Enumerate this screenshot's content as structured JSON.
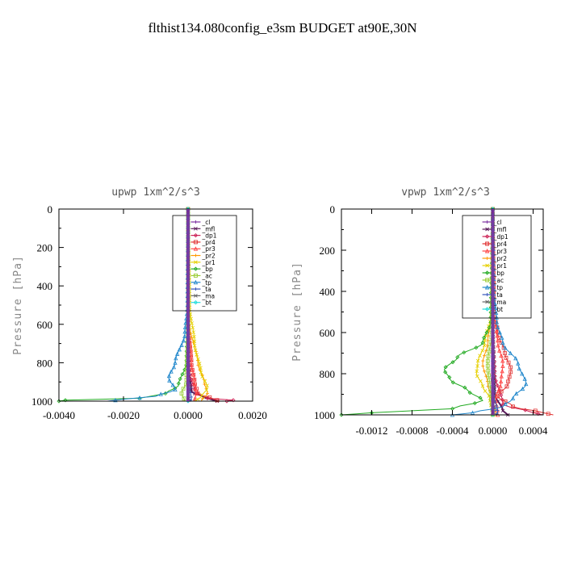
{
  "title": "flthist134.080config_e3sm  BUDGET at90E,30N",
  "chart_data": [
    {
      "type": "line",
      "title": "upwp   1xm^2/s^3",
      "ylabel": "Pressure [hPa]",
      "xlim": [
        -0.004,
        0.002
      ],
      "ylim": [
        1000,
        0
      ],
      "xticks": [
        "-0.0040",
        "-0.0020",
        "0.0000",
        "0.0020"
      ],
      "xtick_values": [
        -0.004,
        -0.002,
        0.0,
        0.002
      ],
      "yticks": [
        "0",
        "200",
        "400",
        "600",
        "800",
        "1000"
      ],
      "ytick_values": [
        0,
        200,
        400,
        600,
        800,
        1000
      ],
      "legend": [
        "_cl",
        "_mfl",
        "_dp1",
        "_pr4",
        "_pr3",
        "_pr2",
        "_pr1",
        "_bp",
        "_ac",
        "_tp",
        "_ta",
        "_ma",
        "_bt"
      ],
      "series": [
        {
          "name": "_cl",
          "color": "#7b2fa0",
          "pressure": [
            0,
            200,
            400,
            600,
            800,
            900,
            960,
            1000
          ],
          "values": [
            0,
            0,
            0,
            0,
            0,
            0,
            0,
            0
          ]
        },
        {
          "name": "_mfl",
          "color": "#5a1a5a",
          "pressure": [
            0,
            400,
            800,
            950,
            980,
            1000
          ],
          "values": [
            0,
            0,
            0,
            0.0001,
            0.0005,
            0.0009
          ]
        },
        {
          "name": "_dp1",
          "color": "#cc2255",
          "pressure": [
            0,
            600,
            850,
            950,
            985,
            995,
            1000
          ],
          "values": [
            0,
            0,
            5e-05,
            0.0002,
            0.0006,
            0.0014,
            0.0012
          ]
        },
        {
          "name": "_pr4",
          "color": "#e03030",
          "pressure": [
            0,
            600,
            800,
            900,
            960,
            990,
            1000
          ],
          "values": [
            0,
            0,
            0.0001,
            0.0002,
            0.0003,
            0.0008,
            0.001
          ]
        },
        {
          "name": "_pr3",
          "color": "#ff4444",
          "pressure": [
            0,
            600,
            800,
            900,
            960,
            1000
          ],
          "values": [
            0,
            2e-05,
            0.0001,
            0.0002,
            0.00025,
            0.0002
          ]
        },
        {
          "name": "_pr2",
          "color": "#ff9900",
          "pressure": [
            0,
            600,
            800,
            900,
            960,
            1000
          ],
          "values": [
            0,
            5e-05,
            0.0003,
            0.0005,
            0.0006,
            0.0004
          ]
        },
        {
          "name": "_pr1",
          "color": "#e6d000",
          "pressure": [
            0,
            500,
            700,
            850,
            930,
            980,
            1000
          ],
          "values": [
            0,
            5e-05,
            0.0002,
            0.0004,
            0.0006,
            0.0004,
            0.0002
          ]
        },
        {
          "name": "_bp",
          "color": "#22aa22",
          "pressure": [
            0,
            500,
            800,
            920,
            960,
            985,
            995,
            1000
          ],
          "values": [
            0,
            0,
            -5e-05,
            -0.0003,
            -0.0007,
            -0.0015,
            -0.0038,
            -0.004
          ]
        },
        {
          "name": "_ac",
          "color": "#99cc33",
          "pressure": [
            0,
            600,
            900,
            960,
            1000
          ],
          "values": [
            0,
            0,
            -5e-05,
            -0.0002,
            -0.0001
          ]
        },
        {
          "name": "_tp",
          "color": "#2288cc",
          "pressure": [
            0,
            500,
            650,
            800,
            880,
            940,
            975,
            990,
            1000
          ],
          "values": [
            0,
            -2e-05,
            -0.0001,
            -0.0004,
            -0.0006,
            -0.0004,
            -0.001,
            -0.002,
            -0.0025
          ]
        },
        {
          "name": "_ta",
          "color": "#3355bb",
          "pressure": [
            0,
            600,
            900,
            990,
            1000
          ],
          "values": [
            0,
            0,
            3e-05,
            0.0001,
            5e-05
          ]
        },
        {
          "name": "_ma",
          "color": "#666666",
          "pressure": [
            0,
            500,
            900,
            1000
          ],
          "values": [
            0,
            0,
            1e-05,
            2e-05
          ]
        },
        {
          "name": "_bt",
          "color": "#22dddd",
          "pressure": [
            0,
            500,
            1000
          ],
          "values": [
            0,
            0,
            0
          ]
        }
      ]
    },
    {
      "type": "line",
      "title": "vpwp   1xm^2/s^3",
      "ylabel": "Pressure [hPa]",
      "xlim": [
        -0.0015,
        0.0005
      ],
      "ylim": [
        1000,
        0
      ],
      "xticks": [
        "-0.0012",
        "-0.0008",
        "-0.0004",
        "0.0000",
        "0.0004"
      ],
      "xtick_values": [
        -0.0012,
        -0.0008,
        -0.0004,
        0.0,
        0.0004
      ],
      "yticks": [
        "0",
        "200",
        "400",
        "600",
        "800",
        "1000"
      ],
      "ytick_values": [
        0,
        200,
        400,
        600,
        800,
        1000
      ],
      "legend": [
        "_cl",
        "_mfl",
        "_dp1",
        "_pr4",
        "_pr3",
        "_pr2",
        "_pr1",
        "_bp",
        "_ac",
        "_tp",
        "_ta",
        "_ma",
        "_bt"
      ],
      "series": [
        {
          "name": "_cl",
          "color": "#7b2fa0",
          "pressure": [
            0,
            200,
            400,
            600,
            800,
            900,
            960,
            1000
          ],
          "values": [
            0,
            0,
            0,
            0,
            0,
            0,
            0,
            0
          ]
        },
        {
          "name": "_mfl",
          "color": "#5a1a5a",
          "pressure": [
            0,
            500,
            900,
            980,
            1000
          ],
          "values": [
            0,
            0,
            2e-05,
            0.0001,
            0.00015
          ]
        },
        {
          "name": "_dp1",
          "color": "#cc2255",
          "pressure": [
            0,
            600,
            800,
            950,
            990,
            1000
          ],
          "values": [
            0,
            0,
            2e-05,
            0.0001,
            0.0004,
            0.0005
          ]
        },
        {
          "name": "_pr4",
          "color": "#e03030",
          "pressure": [
            0,
            500,
            600,
            700,
            780,
            850,
            910,
            960,
            990,
            1000
          ],
          "values": [
            0,
            1e-05,
            5e-05,
            0.00012,
            0.00018,
            0.00015,
            5e-05,
            0.0002,
            0.0005,
            0.0006
          ]
        },
        {
          "name": "_pr3",
          "color": "#ff4444",
          "pressure": [
            0,
            500,
            650,
            750,
            850,
            920,
            1000
          ],
          "values": [
            0,
            1e-05,
            5e-05,
            0.0001,
            8e-05,
            3e-05,
            5e-05
          ]
        },
        {
          "name": "_pr2",
          "color": "#ff9900",
          "pressure": [
            0,
            500,
            650,
            750,
            850,
            930,
            1000
          ],
          "values": [
            0,
            -1e-05,
            -5e-05,
            -0.0001,
            -5e-05,
            0,
            3e-05
          ]
        },
        {
          "name": "_pr1",
          "color": "#e6d000",
          "pressure": [
            0,
            500,
            650,
            750,
            800,
            860,
            920,
            1000
          ],
          "values": [
            0,
            -1e-05,
            -8e-05,
            -0.00015,
            -0.00016,
            -0.0001,
            -3e-05,
            0
          ]
        },
        {
          "name": "_bp",
          "color": "#22aa22",
          "pressure": [
            0,
            550,
            650,
            720,
            780,
            830,
            880,
            930,
            970,
            990,
            1000
          ],
          "values": [
            0,
            -2e-05,
            -0.0001,
            -0.00035,
            -0.00048,
            -0.00042,
            -0.00025,
            -0.0001,
            -0.0004,
            -0.0012,
            -0.0015
          ]
        },
        {
          "name": "_ac",
          "color": "#99cc33",
          "pressure": [
            0,
            600,
            750,
            900,
            1000
          ],
          "values": [
            0,
            -1e-05,
            -5e-05,
            -2e-05,
            0
          ]
        },
        {
          "name": "_tp",
          "color": "#2288cc",
          "pressure": [
            0,
            400,
            550,
            650,
            750,
            850,
            920,
            960,
            990,
            1000
          ],
          "values": [
            0,
            1e-05,
            4e-05,
            0.0001,
            0.00025,
            0.00033,
            0.0002,
            0.0001,
            -0.0002,
            -0.0004
          ]
        },
        {
          "name": "_ta",
          "color": "#3355bb",
          "pressure": [
            0,
            600,
            900,
            990,
            1000
          ],
          "values": [
            0,
            0,
            1e-05,
            5e-05,
            3e-05
          ]
        },
        {
          "name": "_ma",
          "color": "#666666",
          "pressure": [
            0,
            500,
            900,
            1000
          ],
          "values": [
            0,
            0,
            1e-05,
            1e-05
          ]
        },
        {
          "name": "_bt",
          "color": "#22dddd",
          "pressure": [
            0,
            300,
            450,
            500,
            1000
          ],
          "values": [
            0,
            0,
            0,
            0,
            0
          ]
        }
      ]
    }
  ]
}
